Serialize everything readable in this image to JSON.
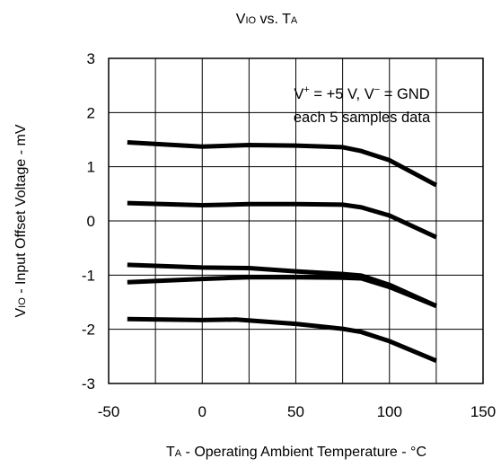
{
  "chart_data": {
    "type": "line",
    "title_main": "V",
    "title_sub": "IO",
    "title_rest": " vs. T",
    "title_sub2": "A",
    "ylabel_main": "V",
    "ylabel_sub": "IO",
    "ylabel_rest": " - Input Offset Voltage - mV",
    "xlabel_main": "T",
    "xlabel_sub": "A",
    "xlabel_rest": " - Operating Ambient Temperature - °C",
    "annotation_line1": {
      "v": "V",
      "plus": "+",
      "mid": " = +5 V, V",
      "minus": "−",
      "end": " = GND"
    },
    "annotation_line2": "each 5 samples data",
    "xlim": [
      -50,
      150
    ],
    "ylim": [
      -3,
      3
    ],
    "xticks": [
      "-50",
      "0",
      "50",
      "100",
      "150"
    ],
    "yticks": [
      "3",
      "2",
      "1",
      "0",
      "-1",
      "-2",
      "-3"
    ],
    "grid": true,
    "series": [
      {
        "x": [
          -40,
          0,
          25,
          50,
          75,
          85,
          100,
          125
        ],
        "y": [
          1.45,
          1.37,
          1.4,
          1.39,
          1.36,
          1.29,
          1.12,
          0.66
        ]
      },
      {
        "x": [
          -40,
          0,
          25,
          50,
          75,
          85,
          100,
          125
        ],
        "y": [
          0.33,
          0.29,
          0.31,
          0.31,
          0.3,
          0.25,
          0.1,
          -0.3
        ]
      },
      {
        "x": [
          -40,
          0,
          25,
          50,
          75,
          85,
          100,
          125
        ],
        "y": [
          -0.81,
          -0.86,
          -0.87,
          -0.93,
          -0.98,
          -1.01,
          -1.18,
          -1.57
        ]
      },
      {
        "x": [
          -40,
          0,
          25,
          50,
          75,
          85,
          100,
          125
        ],
        "y": [
          -1.13,
          -1.07,
          -1.04,
          -1.04,
          -1.05,
          -1.06,
          -1.22,
          -1.57
        ]
      },
      {
        "x": [
          -40,
          0,
          18,
          50,
          75,
          85,
          100,
          125
        ],
        "y": [
          -1.81,
          -1.83,
          -1.82,
          -1.9,
          -1.99,
          -2.05,
          -2.22,
          -2.58
        ]
      }
    ]
  }
}
